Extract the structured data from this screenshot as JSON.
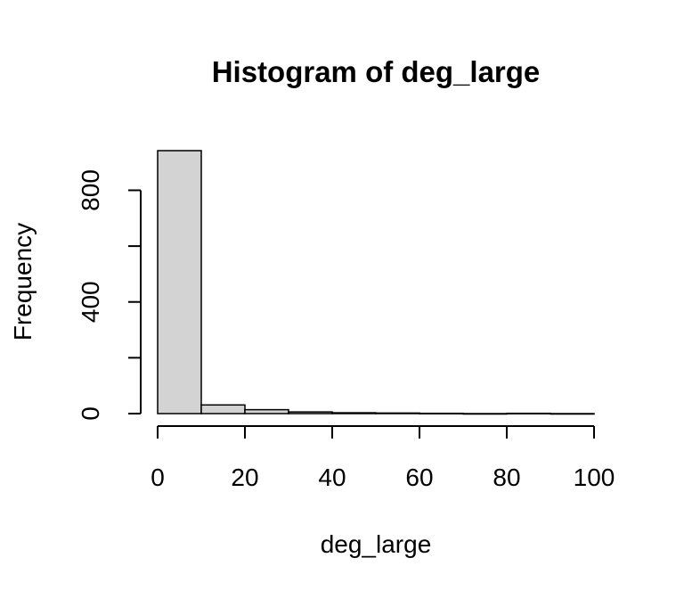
{
  "chart_data": {
    "type": "bar",
    "title": "Histogram of deg_large",
    "xlabel": "deg_large",
    "ylabel": "Frequency",
    "bins": [
      {
        "from": 0,
        "to": 10,
        "count": 942
      },
      {
        "from": 10,
        "to": 20,
        "count": 31
      },
      {
        "from": 20,
        "to": 30,
        "count": 14
      },
      {
        "from": 30,
        "to": 40,
        "count": 6
      },
      {
        "from": 40,
        "to": 50,
        "count": 3
      },
      {
        "from": 50,
        "to": 60,
        "count": 2
      },
      {
        "from": 60,
        "to": 70,
        "count": 1
      },
      {
        "from": 70,
        "to": 80,
        "count": 0
      },
      {
        "from": 80,
        "to": 90,
        "count": 1
      },
      {
        "from": 90,
        "to": 100,
        "count": 0
      }
    ],
    "xlim": [
      0,
      100
    ],
    "ylim": [
      0,
      942
    ],
    "x_ticks": [
      0,
      20,
      40,
      60,
      80,
      100
    ],
    "y_ticks": [
      0,
      200,
      400,
      600,
      800
    ],
    "y_tick_labels": [
      "0",
      "",
      "400",
      "",
      "800"
    ],
    "bar_fill": "#d3d3d3",
    "grid": false,
    "legend": "none"
  }
}
